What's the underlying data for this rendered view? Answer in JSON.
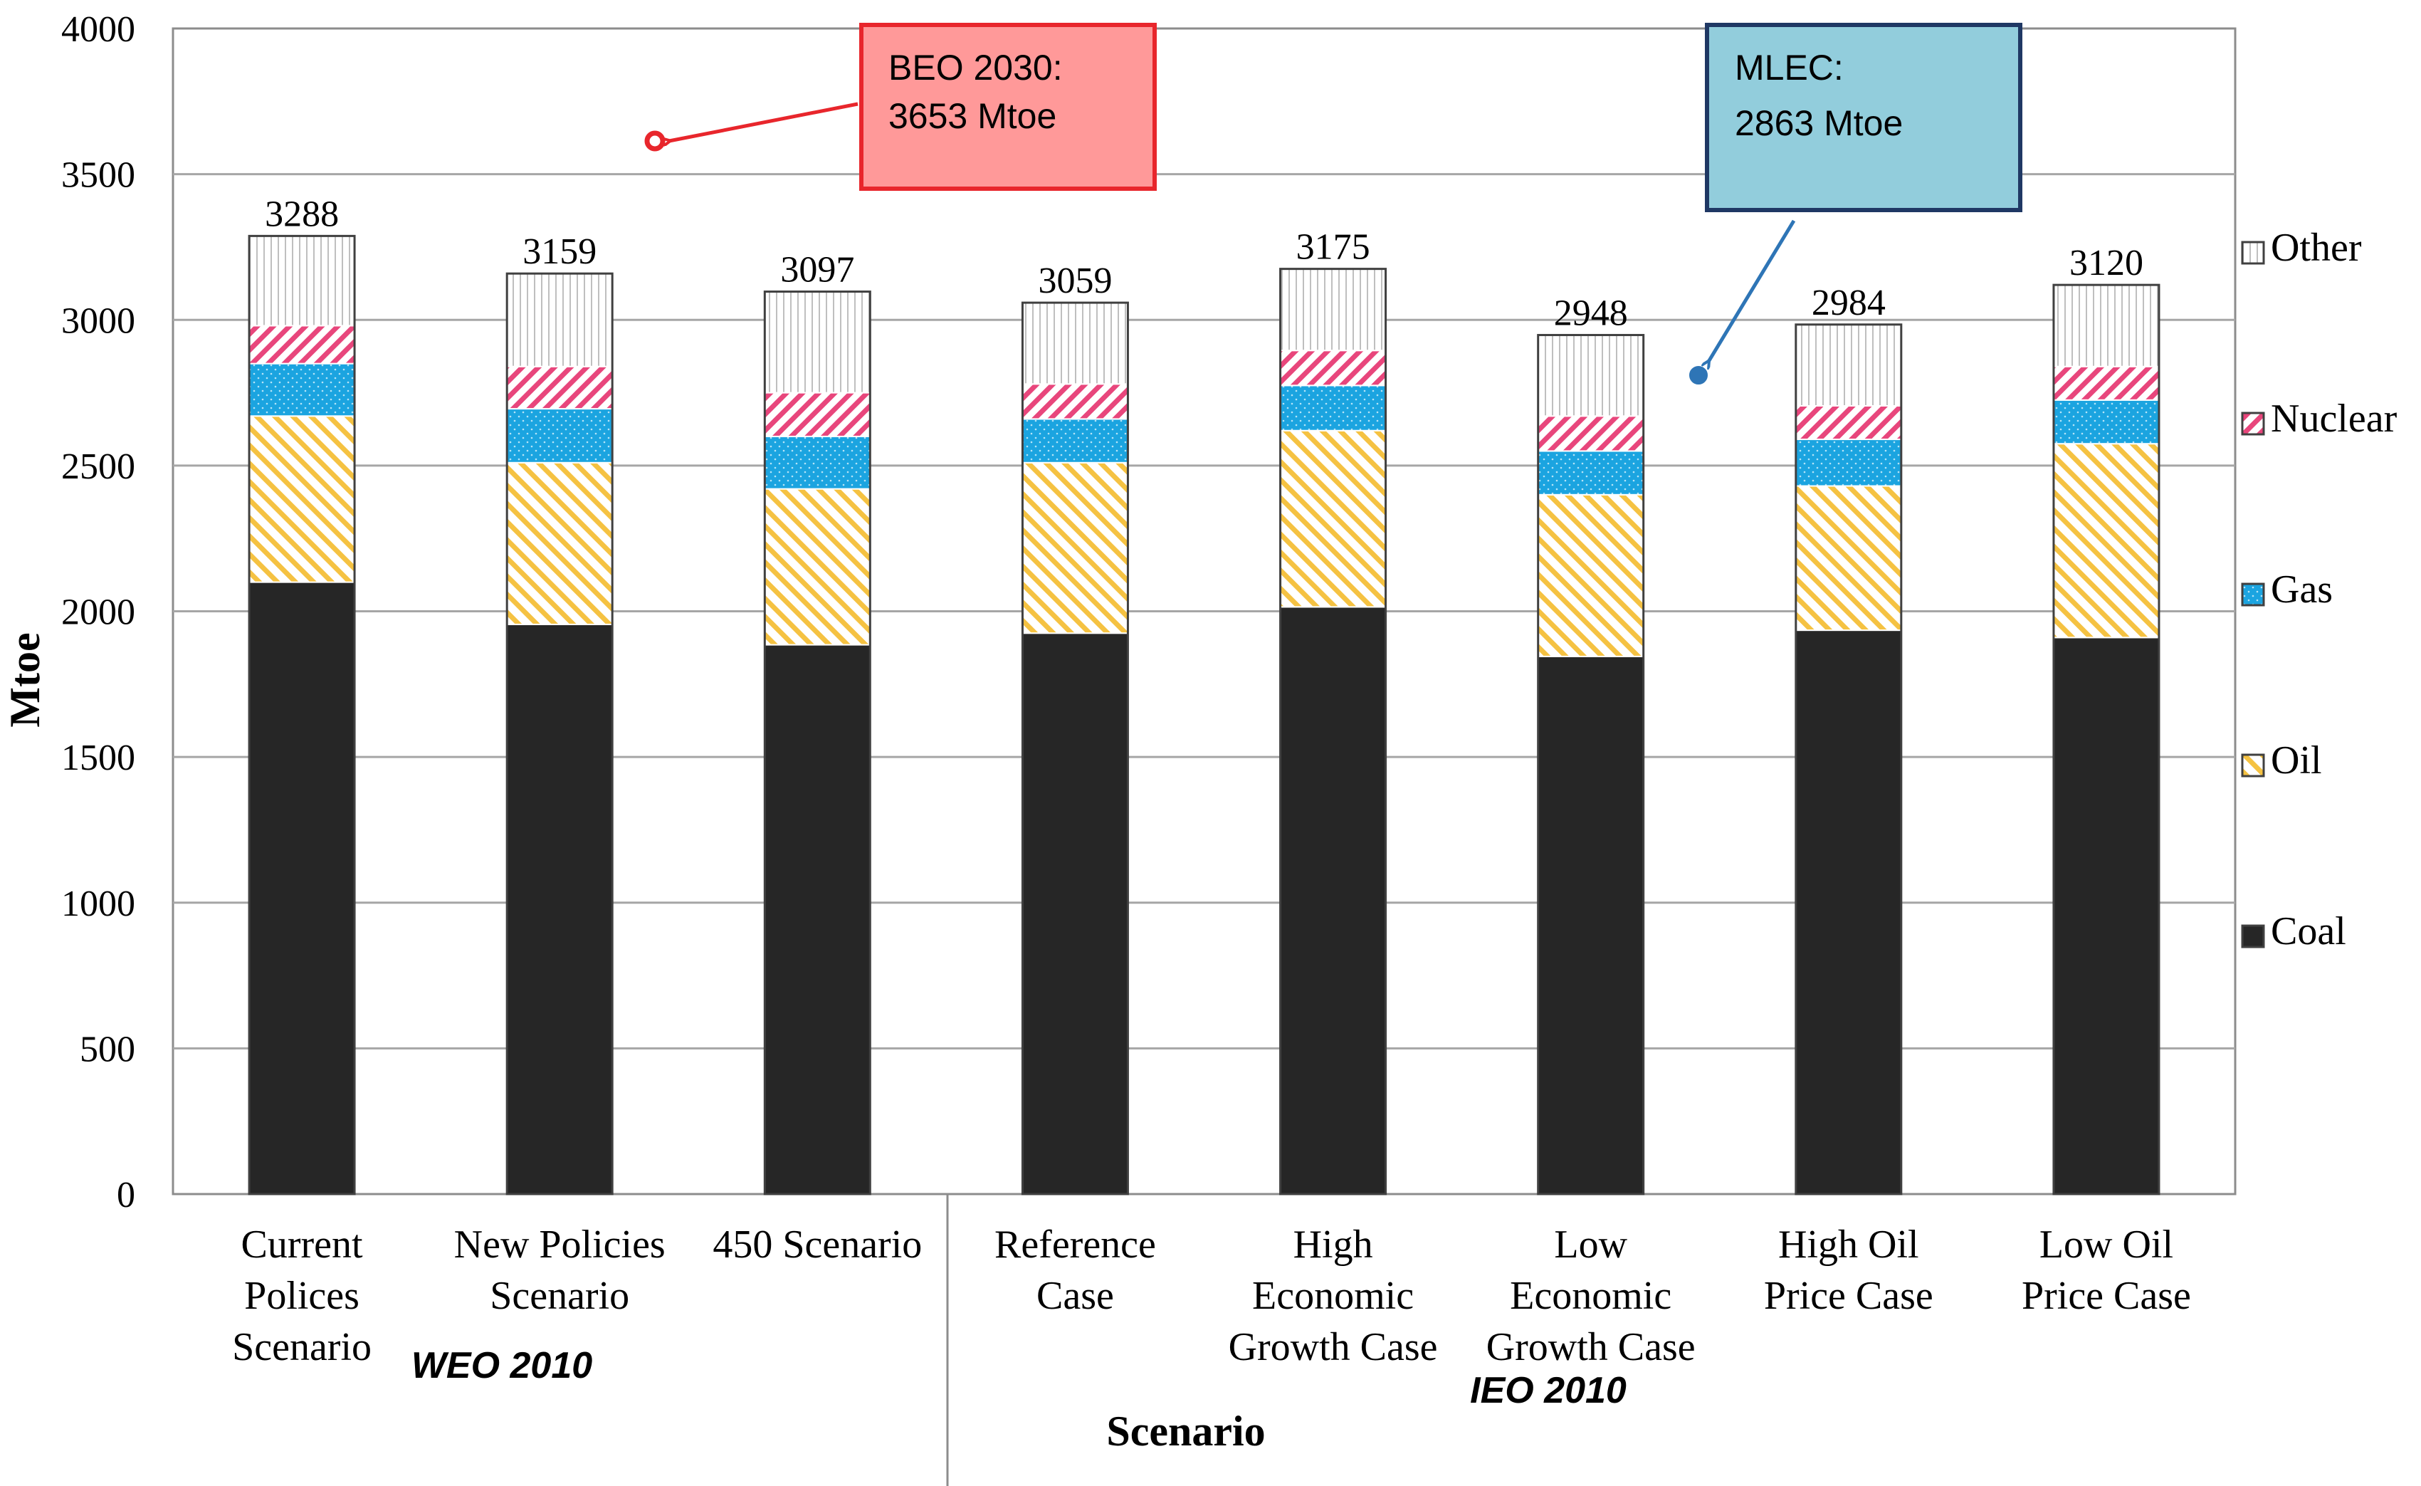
{
  "chart_data": {
    "type": "bar",
    "stacked": true,
    "title": "",
    "xlabel": "Scenario",
    "ylabel": "Mtoe",
    "ylim": [
      0,
      4000
    ],
    "yticks": [
      0,
      500,
      1000,
      1500,
      2000,
      2500,
      3000,
      3500,
      4000
    ],
    "categories": [
      [
        "Current",
        "Polices",
        "Scenario"
      ],
      [
        "New Policies",
        "Scenario"
      ],
      [
        "450 Scenario"
      ],
      [
        "Reference",
        "Case"
      ],
      [
        "High",
        "Economic",
        "Growth Case"
      ],
      [
        "Low",
        "Economic",
        "Growth Case"
      ],
      [
        "High Oil",
        "Price Case"
      ],
      [
        "Low Oil",
        "Price Case"
      ]
    ],
    "series": [
      {
        "name": "Coal",
        "color": "#262626",
        "values": [
          2100,
          1955,
          1885,
          1925,
          2015,
          1845,
          1935,
          1910
        ]
      },
      {
        "name": "Oil",
        "color": "#F5C242",
        "values": [
          570,
          555,
          535,
          585,
          605,
          555,
          495,
          665
        ]
      },
      {
        "name": "Gas",
        "color": "#1BA4E0",
        "values": [
          180,
          185,
          180,
          150,
          155,
          150,
          160,
          150
        ]
      },
      {
        "name": "Nuclear",
        "color": "#E8467C",
        "values": [
          130,
          145,
          150,
          120,
          120,
          120,
          115,
          115
        ]
      },
      {
        "name": "Other",
        "color": "#D9D9D9",
        "values": [
          308,
          319,
          347,
          279,
          280,
          278,
          279,
          280
        ]
      }
    ],
    "totals": [
      3288,
      3159,
      3097,
      3059,
      3175,
      2948,
      2984,
      3120
    ],
    "groups": [
      {
        "label": "WEO 2010",
        "from": 0,
        "to": 2
      },
      {
        "label": "IEO 2010",
        "from": 3,
        "to": 7
      }
    ],
    "legend": [
      "Other",
      "Nuclear",
      "Gas",
      "Oil",
      "Coal"
    ],
    "legend_position": "right",
    "annotations": [
      {
        "line1": "BEO 2030:",
        "line2": "3653 Mtoe",
        "value": 3653,
        "color": "#FF9999",
        "border": "#E8262C",
        "marker": "#E8262C"
      },
      {
        "line1": "MLEC:",
        "line2": "2863 Mtoe",
        "value": 2863,
        "color": "#92CDDC",
        "border": "#1F3864",
        "marker": "#2E75B6"
      }
    ],
    "grid": true
  }
}
